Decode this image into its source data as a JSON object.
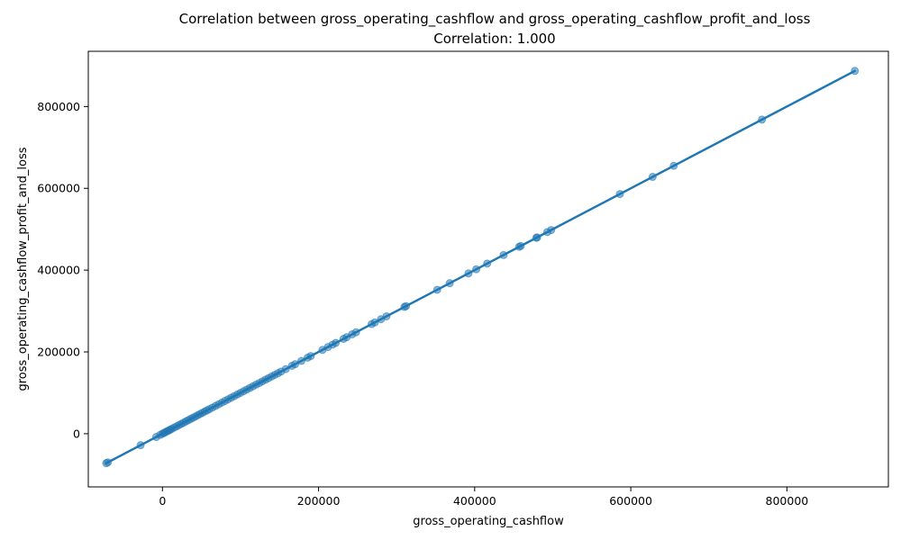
{
  "chart_data": {
    "type": "scatter",
    "title": "Correlation between gross_operating_cashflow and gross_operating_cashflow_profit_and_loss",
    "subtitle": "Correlation: 1.000",
    "xlabel": "gross_operating_cashflow",
    "ylabel": "gross_operating_cashflow_profit_and_loss",
    "xlim": [
      -95000,
      930000
    ],
    "ylim": [
      -130000,
      935000
    ],
    "xticks": [
      0,
      200000,
      400000,
      600000,
      800000
    ],
    "xtick_labels": [
      "0",
      "200000",
      "400000",
      "600000",
      "800000"
    ],
    "yticks": [
      0,
      200000,
      400000,
      600000,
      800000
    ],
    "ytick_labels": [
      "0",
      "200000",
      "400000",
      "600000",
      "800000"
    ],
    "grid": false,
    "colors": {
      "points": "#1f77b4",
      "line": "#1f77b4"
    },
    "regression_line": {
      "x": [
        -72000,
        887000
      ],
      "y": [
        -72000,
        887000
      ]
    },
    "series": [
      {
        "x": [
          -72000,
          -70000,
          -28000,
          -8000,
          -3000,
          0,
          2000,
          4000,
          6000,
          8000,
          10000,
          12000,
          15000,
          18000,
          21000,
          24000,
          27000,
          30000,
          33000,
          36000,
          39000,
          42000,
          45000,
          48000,
          51000,
          54000,
          57000,
          60000,
          64000,
          68000,
          72000,
          76000,
          80000,
          84000,
          88000,
          92000,
          96000,
          100000,
          104000,
          108000,
          112000,
          116000,
          120000,
          124000,
          128000,
          132000,
          136000,
          140000,
          144000,
          148000,
          152000,
          158000,
          166000,
          170000,
          178000,
          186000,
          190000,
          205000,
          212000,
          218000,
          222000,
          232000,
          236000,
          243000,
          248000,
          268000,
          272000,
          280000,
          287000,
          310000,
          312000,
          352000,
          368000,
          392000,
          402000,
          416000,
          437000,
          457000,
          459000,
          479000,
          480000,
          493000,
          498000,
          586000,
          628000,
          655000,
          768000,
          887000
        ],
        "y": [
          -72000,
          -70000,
          -28000,
          -8000,
          -3000,
          0,
          2000,
          4000,
          6000,
          8000,
          10000,
          12000,
          15000,
          18000,
          21000,
          24000,
          27000,
          30000,
          33000,
          36000,
          39000,
          42000,
          45000,
          48000,
          51000,
          54000,
          57000,
          60000,
          64000,
          68000,
          72000,
          76000,
          80000,
          84000,
          88000,
          92000,
          96000,
          100000,
          104000,
          108000,
          112000,
          116000,
          120000,
          124000,
          128000,
          132000,
          136000,
          140000,
          144000,
          148000,
          152000,
          158000,
          166000,
          170000,
          178000,
          186000,
          190000,
          205000,
          212000,
          218000,
          222000,
          232000,
          236000,
          243000,
          248000,
          268000,
          272000,
          280000,
          287000,
          310000,
          312000,
          352000,
          368000,
          392000,
          402000,
          416000,
          437000,
          457000,
          459000,
          479000,
          480000,
          493000,
          498000,
          586000,
          628000,
          655000,
          768000,
          887000
        ]
      }
    ]
  }
}
